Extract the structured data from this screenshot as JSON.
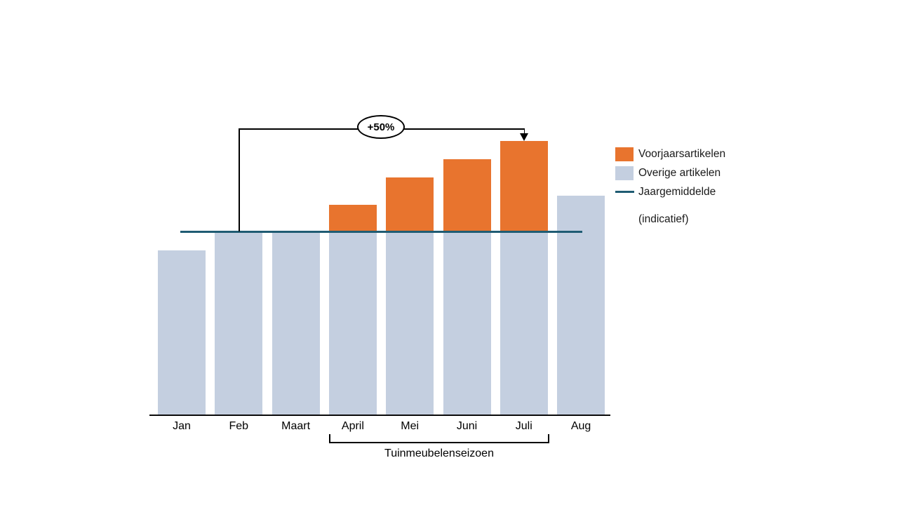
{
  "chart_data": {
    "type": "bar",
    "title": "",
    "xlabel": "",
    "ylabel": "",
    "categories": [
      "Jan",
      "Feb",
      "Maart",
      "April",
      "Mei",
      "Juni",
      "Juli",
      "Aug"
    ],
    "series": [
      {
        "name": "Overige artikelen",
        "color": "#C4CFE0",
        "values": [
          90,
          100,
          100,
          100,
          100,
          100,
          100,
          120
        ]
      },
      {
        "name": "Voorjaarsartikelen",
        "color": "#E8742E",
        "values": [
          0,
          0,
          0,
          15,
          30,
          40,
          50,
          0
        ]
      }
    ],
    "totals": [
      90,
      100,
      100,
      115,
      130,
      140,
      150,
      120
    ],
    "ylim": [
      0,
      160
    ],
    "grid": false,
    "legend_position": "right",
    "reference_line": {
      "label": "Jaargemiddelde",
      "value": 100,
      "color": "#1F5C73"
    },
    "annotation": {
      "label": "+50%",
      "from_category": "Feb",
      "to_category": "Juli"
    },
    "x_bracket": {
      "label": "Tuinmeubelenseizoen",
      "from_category": "April",
      "to_category": "Juli"
    },
    "legend": [
      {
        "label": "Voorjaarsartikelen",
        "swatch": "square",
        "color": "#E8742E"
      },
      {
        "label": "Overige artikelen",
        "swatch": "square",
        "color": "#C4CFE0"
      },
      {
        "label": "Jaargemiddelde",
        "swatch": "line",
        "color": "#1F5C73"
      },
      {
        "label": "(indicatief)",
        "swatch": "none",
        "color": ""
      }
    ]
  }
}
